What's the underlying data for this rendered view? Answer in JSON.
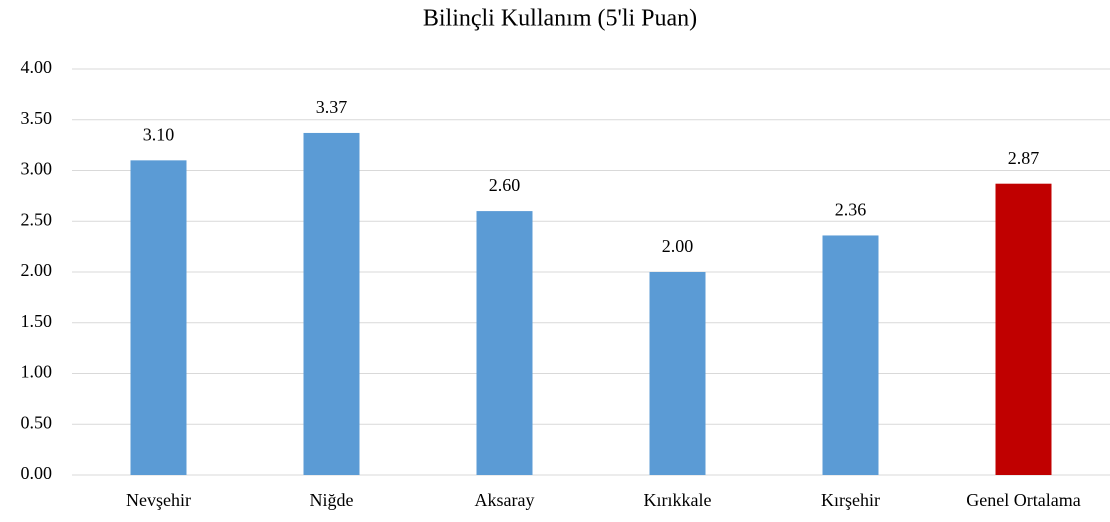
{
  "chart_data": {
    "type": "bar",
    "title": "Bilinçli Kullanım (5'li Puan)",
    "categories": [
      "Nevşehir",
      "Niğde",
      "Aksaray",
      "Kırıkkale",
      "Kırşehir",
      "Genel Ortalama"
    ],
    "values": [
      3.1,
      3.37,
      2.6,
      2.0,
      2.36,
      2.87
    ],
    "value_labels": [
      "3.10",
      "3.37",
      "2.60",
      "2.00",
      "2.36",
      "2.87"
    ],
    "colors": [
      "#5b9bd5",
      "#5b9bd5",
      "#5b9bd5",
      "#5b9bd5",
      "#5b9bd5",
      "#c00000"
    ],
    "ylim": [
      0,
      4
    ],
    "yticks": [
      {
        "value": 0,
        "label": "0.00"
      },
      {
        "value": 0.5,
        "label": "0.50"
      },
      {
        "value": 1,
        "label": "1.00"
      },
      {
        "value": 1.5,
        "label": "1.50"
      },
      {
        "value": 2,
        "label": "2.00"
      },
      {
        "value": 2.5,
        "label": "2.50"
      },
      {
        "value": 3,
        "label": "3.00"
      },
      {
        "value": 3.5,
        "label": "3.50"
      },
      {
        "value": 4,
        "label": "4.00"
      }
    ],
    "grid": true
  }
}
